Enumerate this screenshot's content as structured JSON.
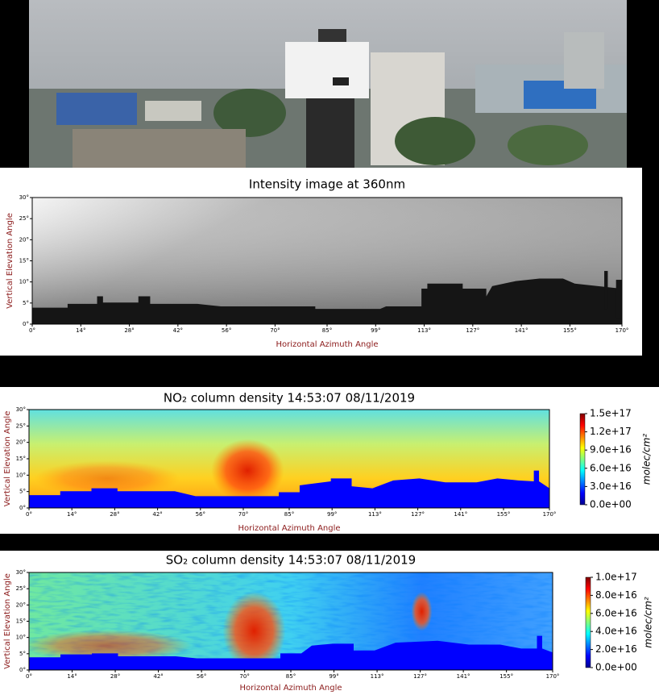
{
  "chart_data": [
    {
      "type": "heatmap",
      "title": "Intensity image at 360nm",
      "x_label": "Horizontal Azimuth Angle",
      "y_label": "Vertical Elevation Angle",
      "xlim": [
        0,
        170
      ],
      "ylim": [
        0,
        30
      ],
      "xticks": [
        {
          "value": 0,
          "label": "0°"
        },
        {
          "value": 14,
          "label": "14°"
        },
        {
          "value": 28,
          "label": "28°"
        },
        {
          "value": 42,
          "label": "42°"
        },
        {
          "value": 56,
          "label": "56°"
        },
        {
          "value": 70,
          "label": "70°"
        },
        {
          "value": 85,
          "label": "85°"
        },
        {
          "value": 99,
          "label": "99°"
        },
        {
          "value": 113,
          "label": "113°"
        },
        {
          "value": 127,
          "label": "127°"
        },
        {
          "value": 141,
          "label": "141°"
        },
        {
          "value": 155,
          "label": "155°"
        },
        {
          "value": 170,
          "label": "170°"
        }
      ],
      "yticks": [
        {
          "value": 0,
          "label": "0°"
        },
        {
          "value": 5,
          "label": "5°"
        },
        {
          "value": 10,
          "label": "10°"
        },
        {
          "value": 15,
          "label": "15°"
        },
        {
          "value": 20,
          "label": "20°"
        },
        {
          "value": 25,
          "label": "25°"
        },
        {
          "value": 30,
          "label": "30°"
        }
      ]
    },
    {
      "type": "heatmap",
      "title": "NO₂ column density 14:53:07 08/11/2019",
      "x_label": "Horizontal Azimuth Angle",
      "y_label": "Vertical Elevation Angle",
      "xlim": [
        0,
        170
      ],
      "ylim": [
        0,
        30
      ],
      "xticks": [
        {
          "value": 0,
          "label": "0°"
        },
        {
          "value": 14,
          "label": "14°"
        },
        {
          "value": 28,
          "label": "28°"
        },
        {
          "value": 42,
          "label": "42°"
        },
        {
          "value": 56,
          "label": "56°"
        },
        {
          "value": 70,
          "label": "70°"
        },
        {
          "value": 85,
          "label": "85°"
        },
        {
          "value": 99,
          "label": "99°"
        },
        {
          "value": 113,
          "label": "113°"
        },
        {
          "value": 127,
          "label": "127°"
        },
        {
          "value": 141,
          "label": "141°"
        },
        {
          "value": 155,
          "label": "155°"
        },
        {
          "value": 170,
          "label": "170°"
        }
      ],
      "yticks": [
        {
          "value": 0,
          "label": "0°"
        },
        {
          "value": 5,
          "label": "5°"
        },
        {
          "value": 10,
          "label": "10°"
        },
        {
          "value": 15,
          "label": "15°"
        },
        {
          "value": 20,
          "label": "20°"
        },
        {
          "value": 25,
          "label": "25°"
        },
        {
          "value": 30,
          "label": "30°"
        }
      ],
      "colorbar_label": "molec/cm²",
      "clim": [
        0,
        1.5e+17
      ],
      "cbticks": [
        {
          "value": 0,
          "label": "0.0e+00"
        },
        {
          "value": 3e+16,
          "label": "3.0e+16"
        },
        {
          "value": 6e+16,
          "label": "6.0e+16"
        },
        {
          "value": 9e+16,
          "label": "9.0e+16"
        },
        {
          "value": 1.2e+17,
          "label": "1.2e+17"
        },
        {
          "value": 1.5e+17,
          "label": "1.5e+17"
        }
      ]
    },
    {
      "type": "heatmap",
      "title": "SO₂ column density 14:53:07 08/11/2019",
      "x_label": "Horizontal Azimuth Angle",
      "y_label": "Vertical Elevation Angle",
      "xlim": [
        0,
        170
      ],
      "ylim": [
        0,
        30
      ],
      "xticks": [
        {
          "value": 0,
          "label": "0°"
        },
        {
          "value": 14,
          "label": "14°"
        },
        {
          "value": 28,
          "label": "28°"
        },
        {
          "value": 42,
          "label": "42°"
        },
        {
          "value": 56,
          "label": "56°"
        },
        {
          "value": 70,
          "label": "70°"
        },
        {
          "value": 85,
          "label": "85°"
        },
        {
          "value": 99,
          "label": "99°"
        },
        {
          "value": 113,
          "label": "113°"
        },
        {
          "value": 127,
          "label": "127°"
        },
        {
          "value": 141,
          "label": "141°"
        },
        {
          "value": 155,
          "label": "155°"
        },
        {
          "value": 170,
          "label": "170°"
        }
      ],
      "yticks": [
        {
          "value": 0,
          "label": "0°"
        },
        {
          "value": 5,
          "label": "5°"
        },
        {
          "value": 10,
          "label": "10°"
        },
        {
          "value": 15,
          "label": "15°"
        },
        {
          "value": 20,
          "label": "20°"
        },
        {
          "value": 25,
          "label": "25°"
        },
        {
          "value": 30,
          "label": "30°"
        }
      ],
      "colorbar_label": "molec/cm²",
      "clim": [
        0,
        1e+17
      ],
      "cbticks": [
        {
          "value": 0,
          "label": "0.0e+00"
        },
        {
          "value": 2e+16,
          "label": "2.0e+16"
        },
        {
          "value": 4e+16,
          "label": "4.0e+16"
        },
        {
          "value": 6e+16,
          "label": "6.0e+16"
        },
        {
          "value": 8e+16,
          "label": "8.0e+16"
        },
        {
          "value": 1e+17,
          "label": "1.0e+17"
        }
      ]
    }
  ]
}
